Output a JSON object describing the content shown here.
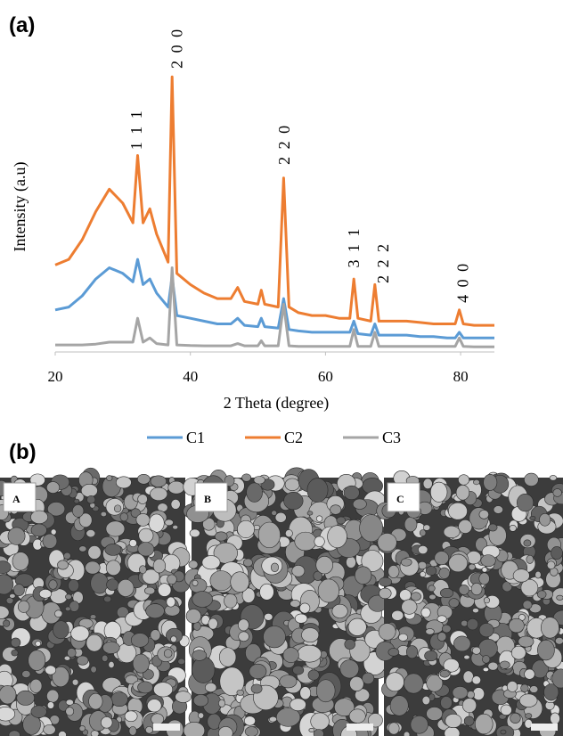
{
  "panel_a_label": "(a)",
  "panel_b_label": "(b)",
  "chart_data": {
    "type": "line",
    "y_label": "Intensity (a.u)",
    "x_label": "2 Theta (degree)",
    "xlim": [
      20,
      85
    ],
    "xticks": [
      20,
      40,
      60,
      80
    ],
    "ylim": [
      0,
      100
    ],
    "x": [
      20,
      22,
      24,
      26,
      28,
      30,
      31.5,
      32.2,
      33,
      34,
      35,
      36.7,
      37.3,
      38,
      40,
      42,
      44,
      46,
      47,
      48,
      50,
      50.5,
      51,
      53,
      53.8,
      54.6,
      56,
      58,
      60,
      62,
      63.6,
      64.2,
      64.8,
      66.7,
      67.3,
      67.9,
      70,
      72,
      74,
      76,
      78,
      79.2,
      79.8,
      80.4,
      82,
      85
    ],
    "series": [
      {
        "name": "C1",
        "color": "#5b9bd5",
        "values": [
          15,
          16,
          20,
          26,
          30,
          28,
          25,
          33,
          24,
          26,
          21,
          16,
          27,
          13,
          12,
          11,
          10,
          10,
          12,
          9.5,
          9,
          12,
          9,
          8.5,
          19,
          8,
          7.5,
          7,
          7,
          7,
          7,
          11,
          6.5,
          6,
          10,
          6,
          6,
          6,
          5.5,
          5.5,
          5,
          5,
          7,
          5,
          5,
          5
        ]
      },
      {
        "name": "C2",
        "color": "#ed7d31",
        "values": [
          31,
          33,
          40,
          50,
          58,
          53,
          46,
          70,
          46,
          51,
          42,
          32,
          98,
          28,
          24,
          21,
          19,
          19,
          23,
          18,
          17,
          22,
          17,
          16,
          62,
          16,
          14,
          13,
          13,
          12,
          12,
          26,
          12,
          11,
          24,
          11,
          11,
          11,
          10.5,
          10,
          10,
          10,
          15,
          10,
          9.5,
          9.5
        ]
      },
      {
        "name": "C3",
        "color": "#a5a5a5",
        "values": [
          2.5,
          2.5,
          2.5,
          2.8,
          3.5,
          3.5,
          3.5,
          12,
          3.5,
          5,
          3,
          2.5,
          30,
          2.5,
          2.3,
          2.2,
          2.2,
          2.2,
          3,
          2.2,
          2.2,
          4,
          2.2,
          2.2,
          17,
          2.2,
          2,
          2,
          2,
          2,
          2,
          8,
          2,
          2,
          7,
          2,
          2,
          2,
          2,
          2,
          2,
          2,
          5,
          2,
          1.8,
          1.8
        ]
      }
    ],
    "annotations": [
      {
        "text": "1 1 1",
        "x": 32,
        "y": 72
      },
      {
        "text": "2 0 0",
        "x": 38,
        "y": 101
      },
      {
        "text": "2 2 0",
        "x": 53.9,
        "y": 66.7
      },
      {
        "text": "3 1 1",
        "x": 64.2,
        "y": 30
      },
      {
        "text": "2 2 2",
        "x": 68.5,
        "y": 24.5
      },
      {
        "text": "4 0 0",
        "x": 80.3,
        "y": 17.5
      }
    ]
  },
  "sem_images": [
    {
      "label": "A"
    },
    {
      "label": "B"
    },
    {
      "label": "C"
    }
  ]
}
